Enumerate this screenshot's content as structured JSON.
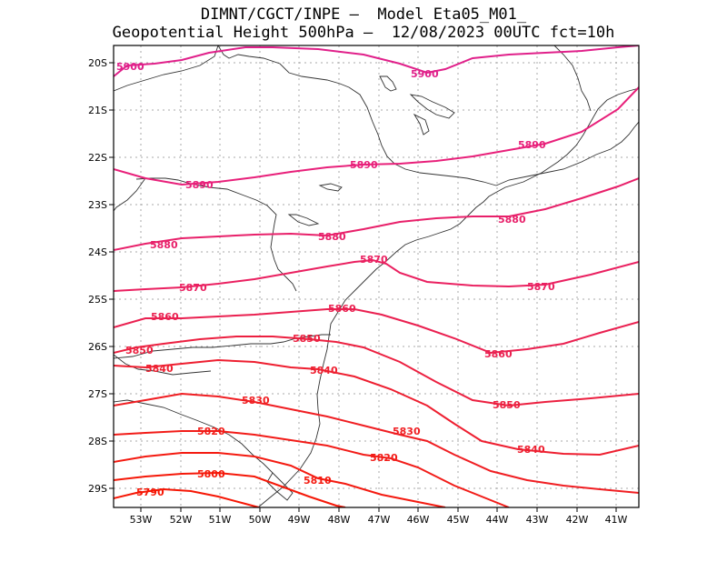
{
  "header": {
    "line1": "DIMNT/CGCT/INPE –  Model Eta05_M01_",
    "line2": "Geopotential Height 500hPa –  12/08/2023 00UTC fct=10h"
  },
  "colors": {
    "c5900": "#e0208a",
    "c5890": "#e8207a",
    "c5880": "#e8206a",
    "c5870": "#ea2060",
    "c5860": "#ea2050",
    "c5850": "#ec2040",
    "c5840": "#ee1f30",
    "c5830": "#f01e22",
    "c5820": "#f21c18",
    "c5810": "#f41a10",
    "c5800": "#f51808",
    "c5790": "#f61604",
    "grid": "#aaaaaa",
    "coast": "#333333"
  },
  "chart_data": {
    "type": "contour_map",
    "variable": "Geopotential Height 500hPa",
    "lon_range": [
      -53.7,
      -40.5
    ],
    "lat_range": [
      -29.4,
      -19.6
    ],
    "x_ticks": [
      "53W",
      "52W",
      "51W",
      "50W",
      "49W",
      "48W",
      "47W",
      "46W",
      "45W",
      "44W",
      "43W",
      "42W",
      "41W"
    ],
    "y_ticks": [
      "20S",
      "21S",
      "22S",
      "23S",
      "24S",
      "25S",
      "26S",
      "27S",
      "28S",
      "29S"
    ],
    "contour_labels": [
      "5900",
      "5900",
      "5890",
      "5890",
      "5890",
      "5880",
      "5880",
      "5880",
      "5870",
      "5870",
      "5870",
      "5860",
      "5860",
      "5860",
      "5850",
      "5850",
      "5850",
      "5840",
      "5840",
      "5840",
      "5830",
      "5830",
      "5820",
      "5820",
      "5810",
      "5800",
      "5790"
    ]
  }
}
